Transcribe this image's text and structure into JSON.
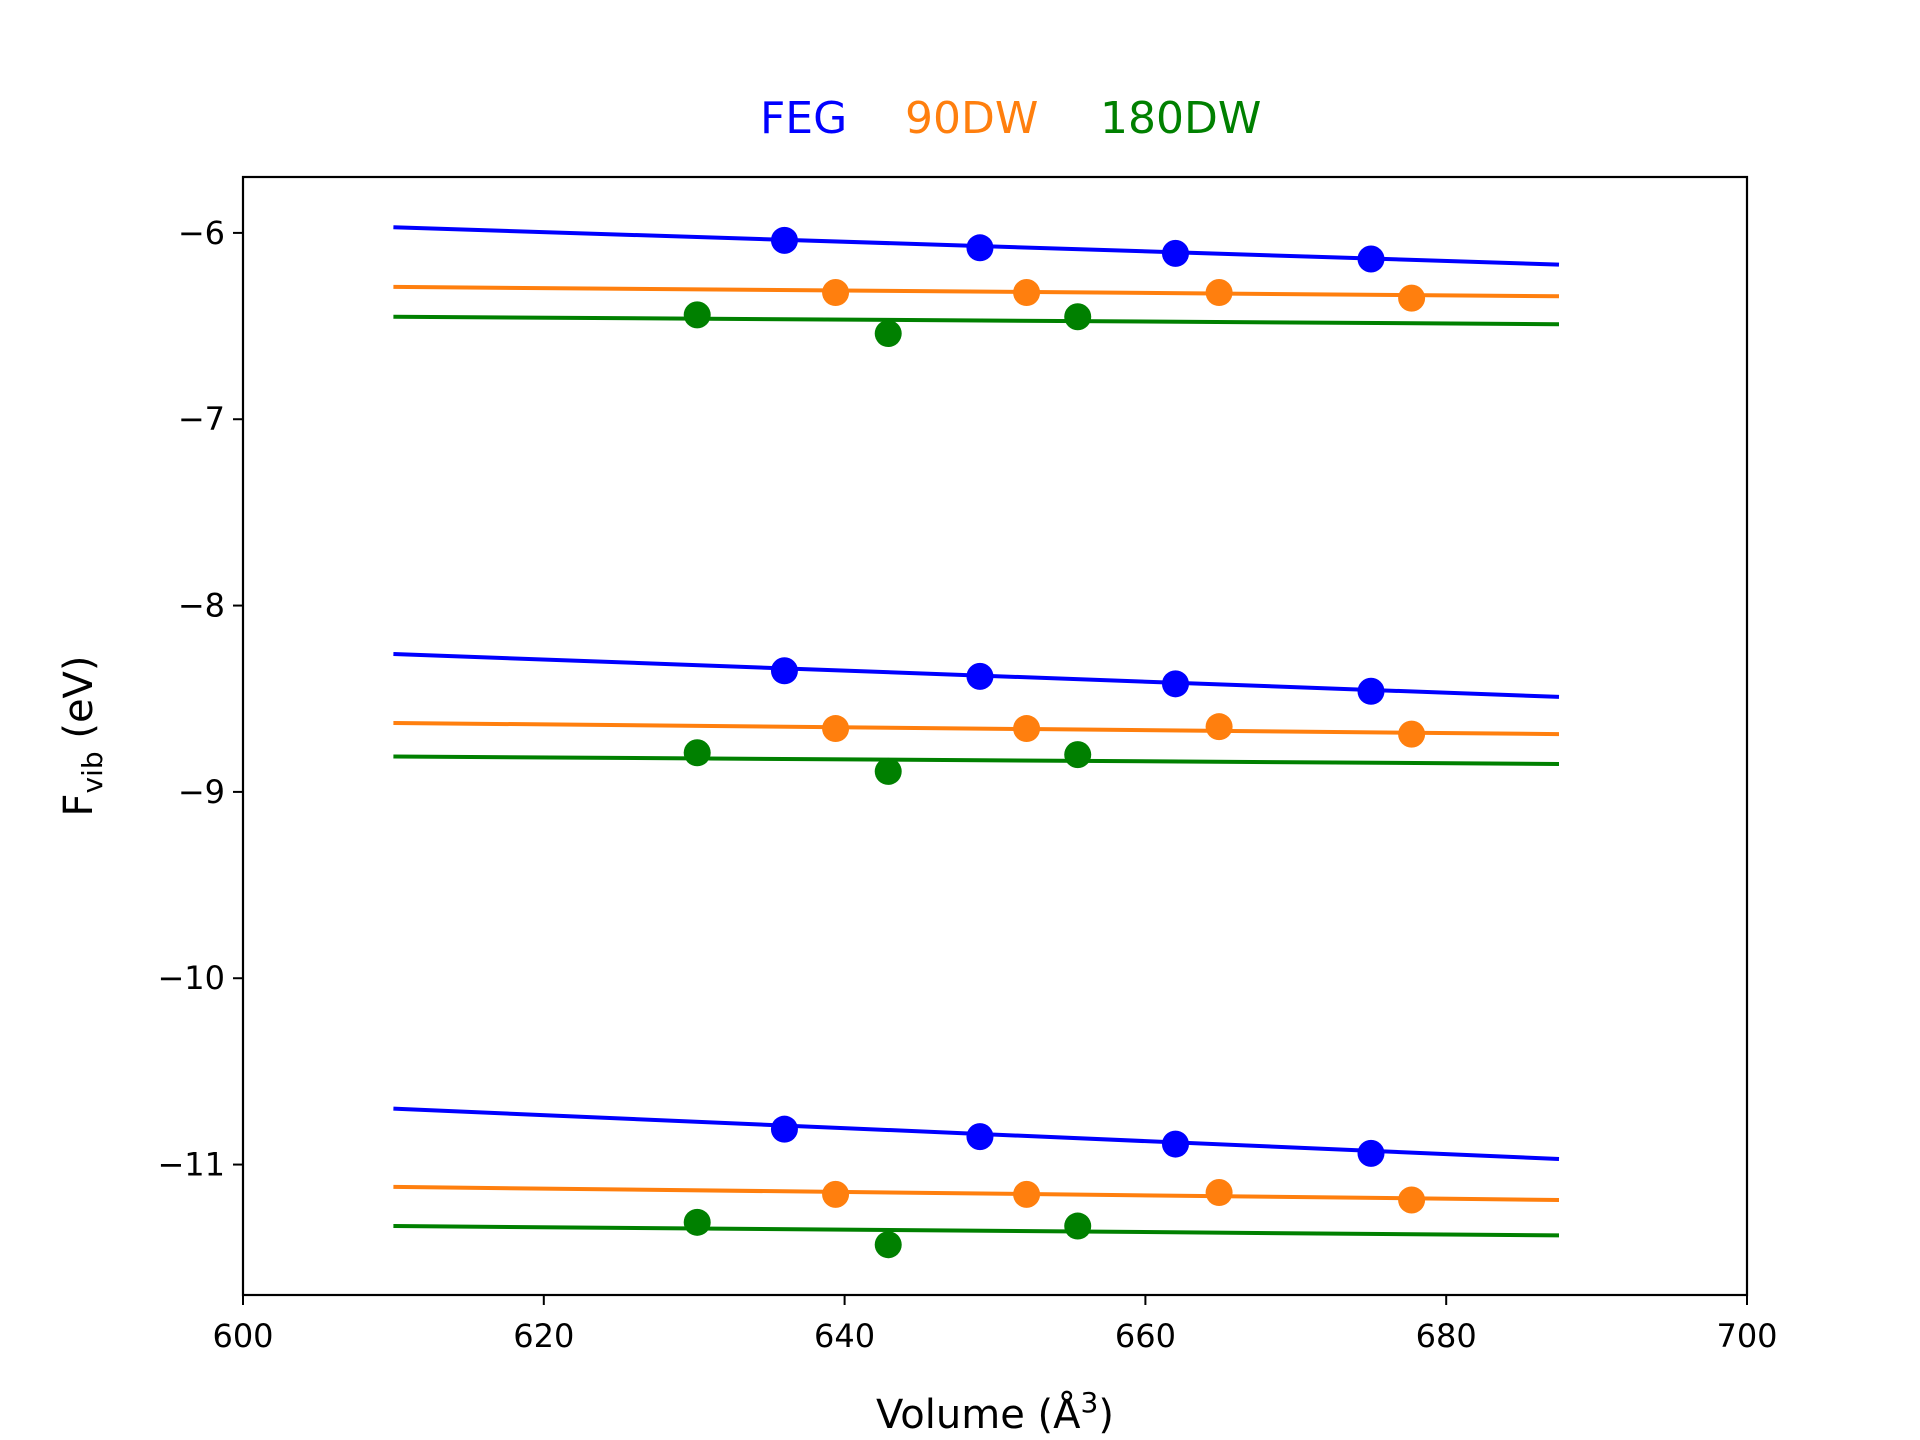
{
  "chart_data": {
    "type": "scatter",
    "xlabel": "Volume (Å",
    "xlabel_sup": "3",
    "xlabel_close": ")",
    "ylabel": "F",
    "ylabel_sub": "vib",
    "ylabel_unit": " (eV)",
    "xlim": [
      600,
      700
    ],
    "ylim": [
      -11.7,
      -5.7
    ],
    "x_ticks": [
      600,
      620,
      640,
      660,
      680,
      700
    ],
    "x_tick_labels": [
      "600",
      "620",
      "640",
      "660",
      "680",
      "700"
    ],
    "y_ticks": [
      -6,
      -7,
      -8,
      -9,
      -10,
      -11
    ],
    "y_tick_labels": [
      "−6",
      "−7",
      "−8",
      "−9",
      "−10",
      "−11"
    ],
    "grid": false,
    "legend_position": "top-center",
    "series": [
      {
        "name": "FEG",
        "color": "#0000ff",
        "groups": [
          {
            "points": [
              [
                636,
                -6.04
              ],
              [
                649,
                -6.08
              ],
              [
                662,
                -6.11
              ],
              [
                675,
                -6.14
              ]
            ],
            "fit": [
              [
                610,
                -5.97
              ],
              [
                687.5,
                -6.17
              ]
            ]
          },
          {
            "points": [
              [
                636,
                -8.35
              ],
              [
                649,
                -8.38
              ],
              [
                662,
                -8.42
              ],
              [
                675,
                -8.46
              ]
            ],
            "fit": [
              [
                610,
                -8.26
              ],
              [
                687.5,
                -8.49
              ]
            ]
          },
          {
            "points": [
              [
                636,
                -10.81
              ],
              [
                649,
                -10.85
              ],
              [
                662,
                -10.89
              ],
              [
                675,
                -10.94
              ]
            ],
            "fit": [
              [
                610,
                -10.7
              ],
              [
                687.5,
                -10.97
              ]
            ]
          }
        ]
      },
      {
        "name": "90DW",
        "color": "#ff7f0e",
        "groups": [
          {
            "points": [
              [
                639.4,
                -6.32
              ],
              [
                652.1,
                -6.32
              ],
              [
                664.9,
                -6.32
              ],
              [
                677.7,
                -6.35
              ]
            ],
            "fit": [
              [
                610,
                -6.29
              ],
              [
                687.5,
                -6.34
              ]
            ]
          },
          {
            "points": [
              [
                639.4,
                -8.66
              ],
              [
                652.1,
                -8.66
              ],
              [
                664.9,
                -8.65
              ],
              [
                677.7,
                -8.69
              ]
            ],
            "fit": [
              [
                610,
                -8.63
              ],
              [
                687.5,
                -8.69
              ]
            ]
          },
          {
            "points": [
              [
                639.4,
                -11.16
              ],
              [
                652.1,
                -11.16
              ],
              [
                664.9,
                -11.15
              ],
              [
                677.7,
                -11.19
              ]
            ],
            "fit": [
              [
                610,
                -11.12
              ],
              [
                687.5,
                -11.19
              ]
            ]
          }
        ]
      },
      {
        "name": "180DW",
        "color": "#008000",
        "groups": [
          {
            "points": [
              [
                630.2,
                -6.44
              ],
              [
                642.9,
                -6.54
              ],
              [
                655.5,
                -6.45
              ]
            ],
            "fit": [
              [
                610,
                -6.45
              ],
              [
                687.5,
                -6.49
              ]
            ]
          },
          {
            "points": [
              [
                630.2,
                -8.79
              ],
              [
                642.9,
                -8.89
              ],
              [
                655.5,
                -8.8
              ]
            ],
            "fit": [
              [
                610,
                -8.81
              ],
              [
                687.5,
                -8.85
              ]
            ]
          },
          {
            "points": [
              [
                630.2,
                -11.31
              ],
              [
                642.9,
                -11.43
              ],
              [
                655.5,
                -11.33
              ]
            ],
            "fit": [
              [
                610,
                -11.33
              ],
              [
                687.5,
                -11.38
              ]
            ]
          }
        ]
      }
    ]
  }
}
